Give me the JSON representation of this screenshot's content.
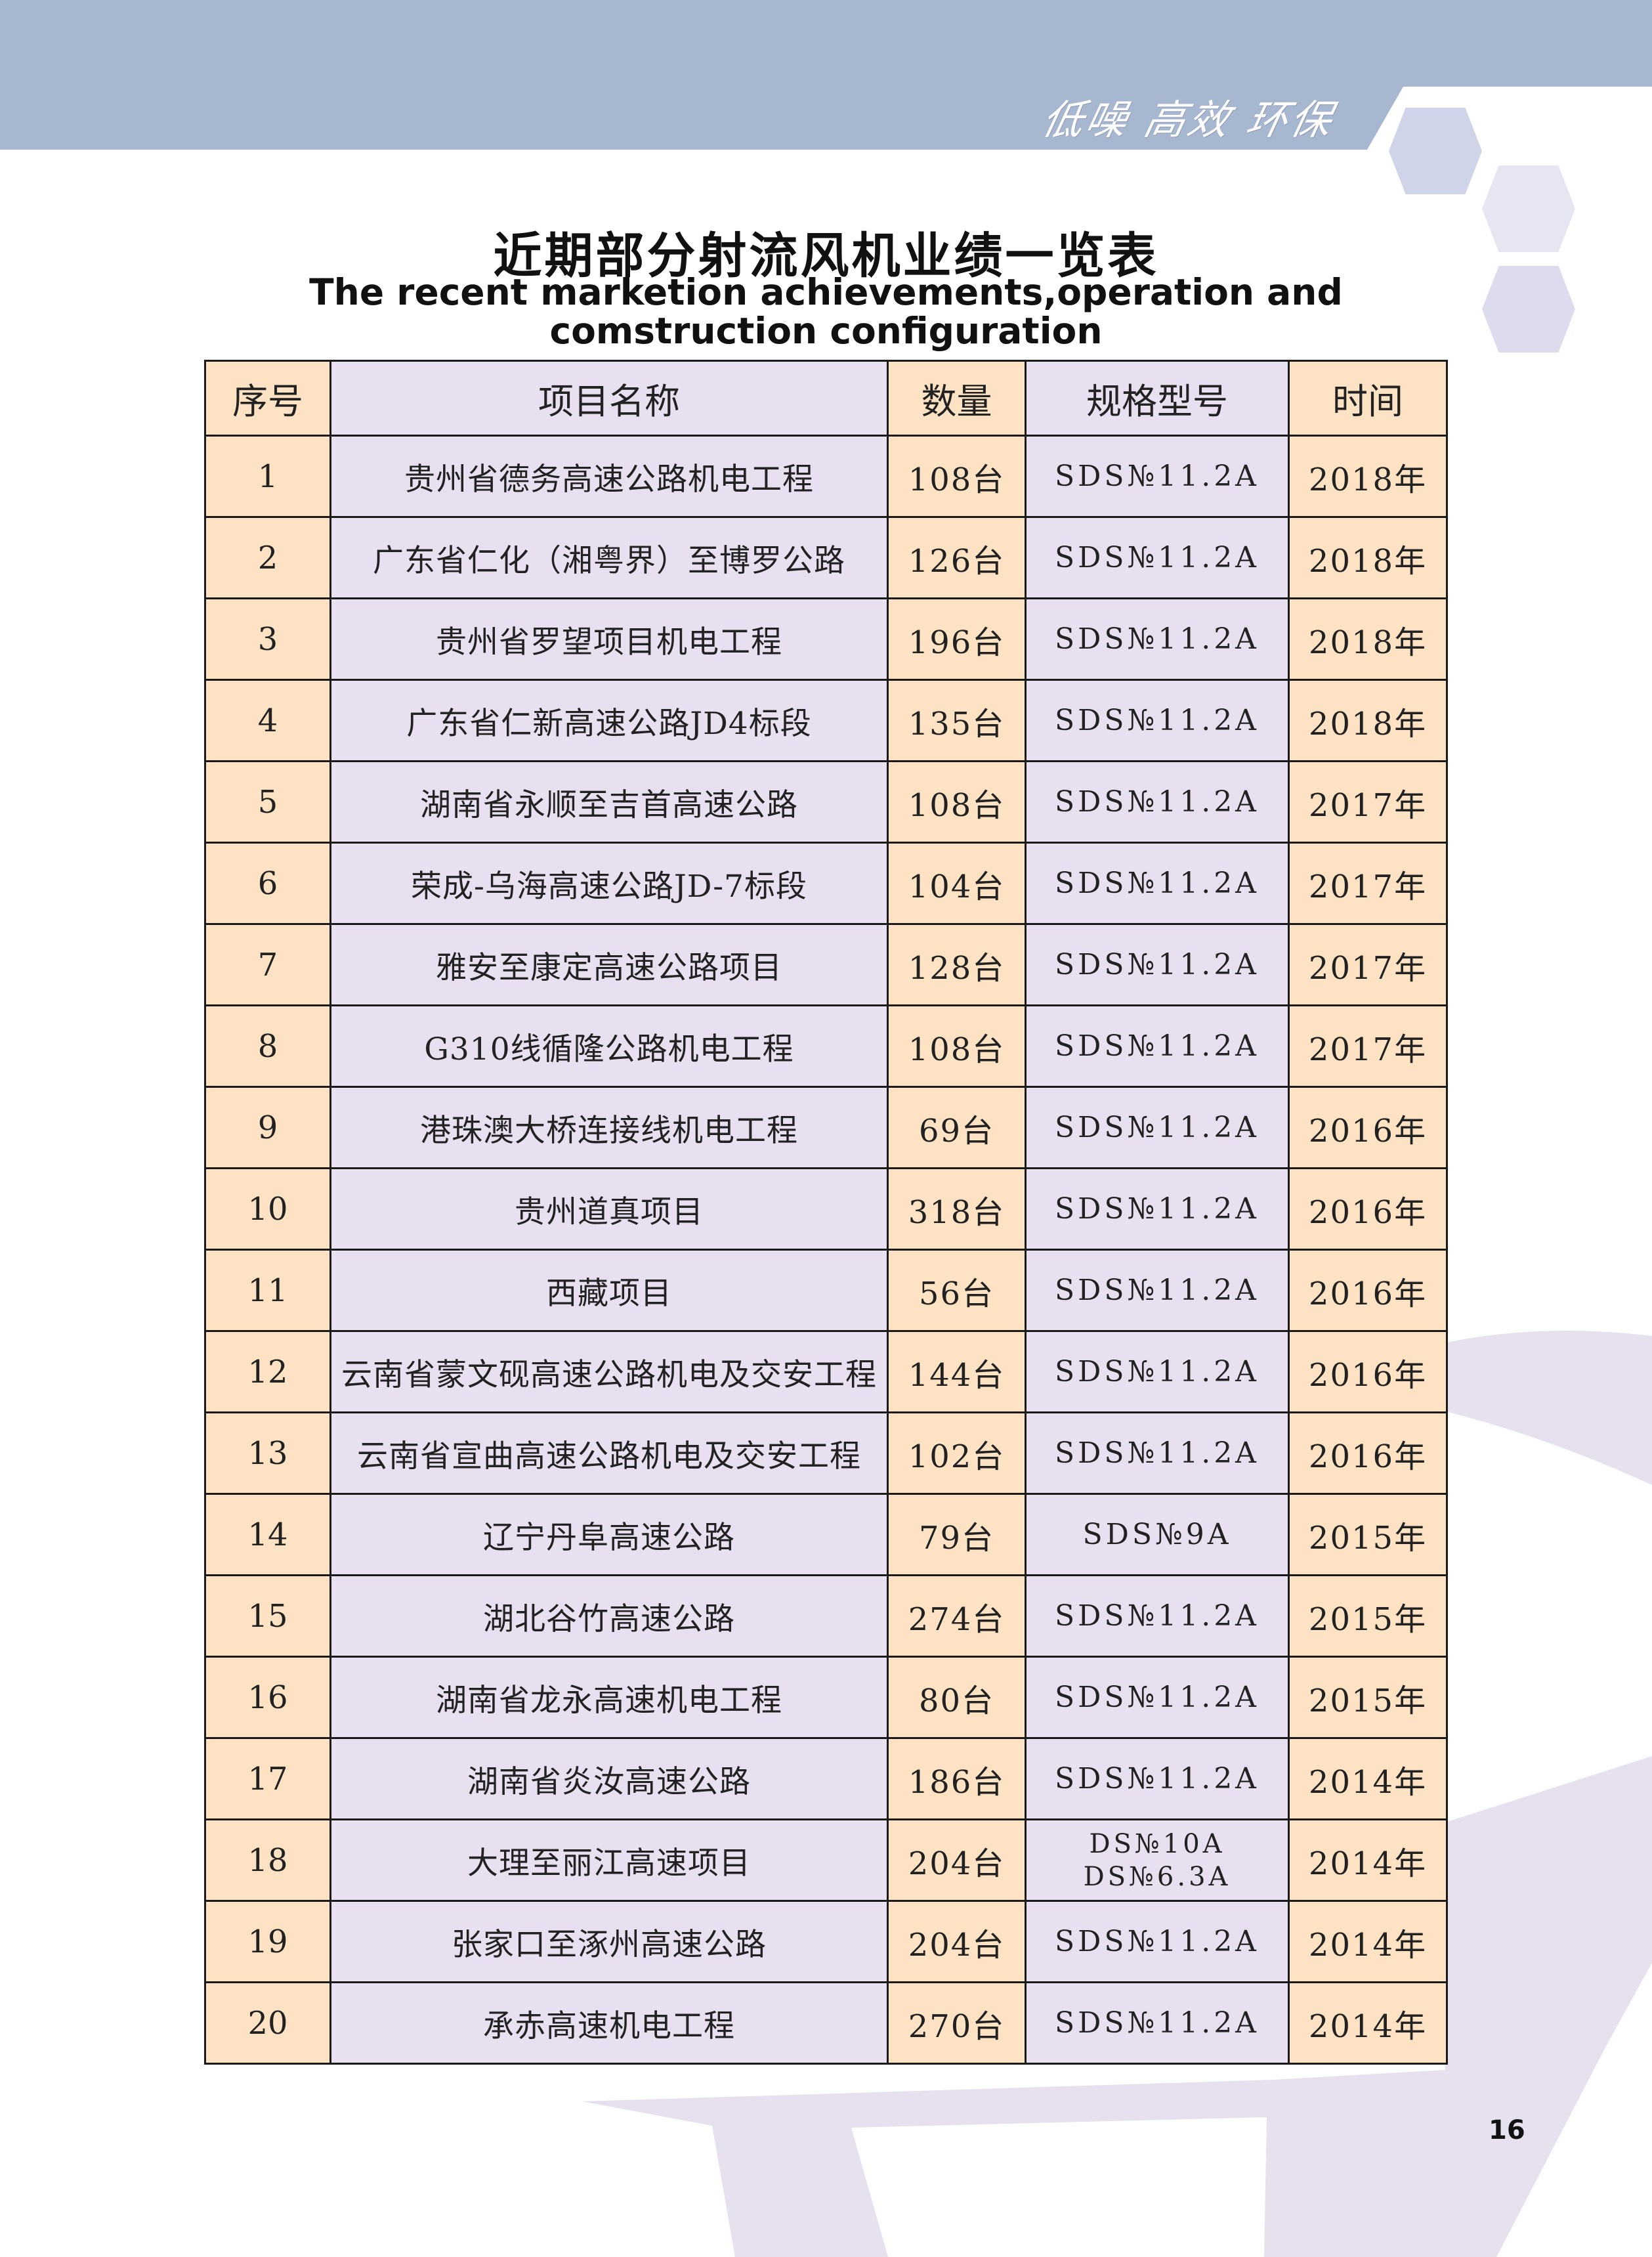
{
  "header": {
    "tagline": "低噪 高效 环保",
    "band_color": "#a8b7d0"
  },
  "title": {
    "chinese": "近期部分射流风机业绩一览表",
    "english_line1": "The recent marketion achievements,operation and",
    "english_line2": "comstruction configuration"
  },
  "table": {
    "columns": [
      "序号",
      "项目名称",
      "数量",
      "规格型号",
      "时间"
    ],
    "colors": {
      "orange": "#fde3c4",
      "lavender": "#e8dff0"
    },
    "rows": [
      {
        "no": "1",
        "name": "贵州省德务高速公路机电工程",
        "qty": "108台",
        "spec": "SDS№11.2A",
        "year": "2018年"
      },
      {
        "no": "2",
        "name": "广东省仁化（湘粤界）至博罗公路",
        "qty": "126台",
        "spec": "SDS№11.2A",
        "year": "2018年"
      },
      {
        "no": "3",
        "name": "贵州省罗望项目机电工程",
        "qty": "196台",
        "spec": "SDS№11.2A",
        "year": "2018年"
      },
      {
        "no": "4",
        "name": "广东省仁新高速公路JD4标段",
        "qty": "135台",
        "spec": "SDS№11.2A",
        "year": "2018年"
      },
      {
        "no": "5",
        "name": "湖南省永顺至吉首高速公路",
        "qty": "108台",
        "spec": "SDS№11.2A",
        "year": "2017年"
      },
      {
        "no": "6",
        "name": "荣成-乌海高速公路JD-7标段",
        "qty": "104台",
        "spec": "SDS№11.2A",
        "year": "2017年"
      },
      {
        "no": "7",
        "name": "雅安至康定高速公路项目",
        "qty": "128台",
        "spec": "SDS№11.2A",
        "year": "2017年"
      },
      {
        "no": "8",
        "name": "G310线循隆公路机电工程",
        "qty": "108台",
        "spec": "SDS№11.2A",
        "year": "2017年"
      },
      {
        "no": "9",
        "name": "港珠澳大桥连接线机电工程",
        "qty": "69台",
        "spec": "SDS№11.2A",
        "year": "2016年"
      },
      {
        "no": "10",
        "name": "贵州道真项目",
        "qty": "318台",
        "spec": "SDS№11.2A",
        "year": "2016年"
      },
      {
        "no": "11",
        "name": "西藏项目",
        "qty": "56台",
        "spec": "SDS№11.2A",
        "year": "2016年"
      },
      {
        "no": "12",
        "name": "云南省蒙文砚高速公路机电及交安工程",
        "qty": "144台",
        "spec": "SDS№11.2A",
        "year": "2016年"
      },
      {
        "no": "13",
        "name": "云南省宣曲高速公路机电及交安工程",
        "qty": "102台",
        "spec": "SDS№11.2A",
        "year": "2016年"
      },
      {
        "no": "14",
        "name": "辽宁丹阜高速公路",
        "qty": "79台",
        "spec": "SDS№9A",
        "year": "2015年"
      },
      {
        "no": "15",
        "name": "湖北谷竹高速公路",
        "qty": "274台",
        "spec": "SDS№11.2A",
        "year": "2015年"
      },
      {
        "no": "16",
        "name": "湖南省龙永高速机电工程",
        "qty": "80台",
        "spec": "SDS№11.2A",
        "year": "2015年"
      },
      {
        "no": "17",
        "name": "湖南省炎汝高速公路",
        "qty": "186台",
        "spec": "SDS№11.2A",
        "year": "2014年"
      },
      {
        "no": "18",
        "name": "大理至丽江高速项目",
        "qty": "204台",
        "spec": "DS№10A\nDS№6.3A",
        "year": "2014年"
      },
      {
        "no": "19",
        "name": "张家口至涿州高速公路",
        "qty": "204台",
        "spec": "SDS№11.2A",
        "year": "2014年"
      },
      {
        "no": "20",
        "name": "承赤高速机电工程",
        "qty": "270台",
        "spec": "SDS№11.2A",
        "year": "2014年"
      }
    ]
  },
  "footer": {
    "page_number": "16"
  }
}
